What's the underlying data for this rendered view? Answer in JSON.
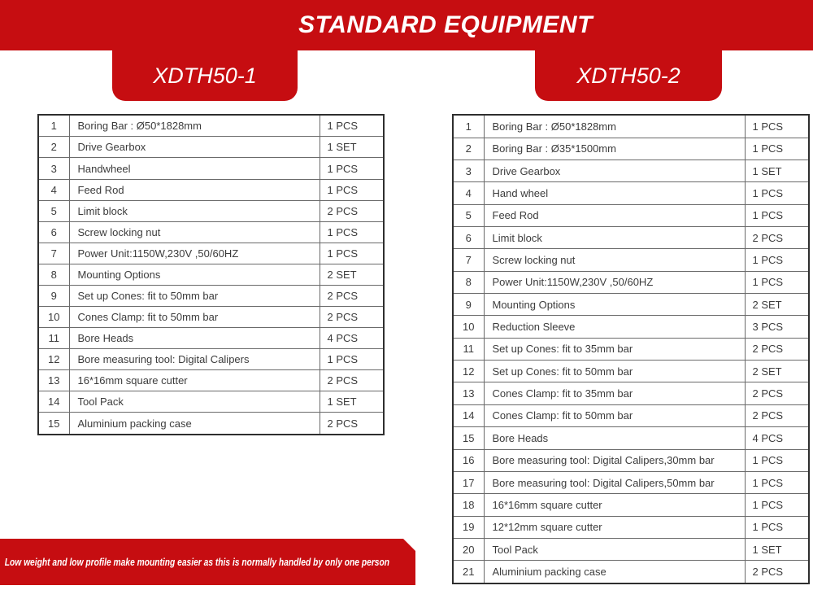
{
  "title": "STANDARD EQUIPMENT",
  "colors": {
    "brand_red": "#C60D11",
    "table_text": "#3C3C3C"
  },
  "tabs": [
    {
      "label": "XDTH50-1"
    },
    {
      "label": "XDTH50-2"
    }
  ],
  "tables": [
    {
      "model": "XDTH50-1",
      "rows": [
        [
          "1",
          "Boring Bar : Ø50*1828mm",
          "1 PCS"
        ],
        [
          "2",
          "Drive Gearbox",
          "1 SET"
        ],
        [
          "3",
          "Handwheel",
          "1 PCS"
        ],
        [
          "4",
          "Feed Rod",
          "1 PCS"
        ],
        [
          "5",
          "Limit block",
          "2 PCS"
        ],
        [
          "6",
          "Screw locking nut",
          "1 PCS"
        ],
        [
          "7",
          "Power Unit:1150W,230V ,50/60HZ",
          "1 PCS"
        ],
        [
          "8",
          "Mounting Options",
          "2 SET"
        ],
        [
          "9",
          "Set up Cones: fit to 50mm bar",
          "2 PCS"
        ],
        [
          "10",
          "Cones Clamp: fit to 50mm bar",
          "2 PCS"
        ],
        [
          "11",
          "Bore Heads",
          "4 PCS"
        ],
        [
          "12",
          "Bore measuring tool: Digital Calipers",
          "1 PCS"
        ],
        [
          "13",
          "16*16mm square cutter",
          "2 PCS"
        ],
        [
          "14",
          "Tool Pack",
          "1 SET"
        ],
        [
          "15",
          "Aluminium packing case",
          "2 PCS"
        ]
      ]
    },
    {
      "model": "XDTH50-2",
      "rows": [
        [
          "1",
          "Boring Bar : Ø50*1828mm",
          "1 PCS"
        ],
        [
          "2",
          "Boring Bar : Ø35*1500mm",
          "1 PCS"
        ],
        [
          "3",
          "Drive Gearbox",
          "1 SET"
        ],
        [
          "4",
          "Hand wheel",
          "1 PCS"
        ],
        [
          "5",
          "Feed Rod",
          "1 PCS"
        ],
        [
          "6",
          "Limit block",
          "2 PCS"
        ],
        [
          "7",
          "Screw locking nut",
          "1 PCS"
        ],
        [
          "8",
          "Power Unit:1150W,230V ,50/60HZ",
          "1 PCS"
        ],
        [
          "9",
          "Mounting Options",
          "2 SET"
        ],
        [
          "10",
          "Reduction Sleeve",
          "3 PCS"
        ],
        [
          "11",
          "Set up Cones: fit to 35mm bar",
          "2 PCS"
        ],
        [
          "12",
          "Set up Cones: fit to 50mm bar",
          "2 SET"
        ],
        [
          "13",
          "Cones Clamp: fit to 35mm bar",
          "2 PCS"
        ],
        [
          "14",
          "Cones Clamp: fit to 50mm bar",
          "2 PCS"
        ],
        [
          "15",
          "Bore Heads",
          "4 PCS"
        ],
        [
          "16",
          "Bore measuring tool: Digital Calipers,30mm bar",
          "1 PCS"
        ],
        [
          "17",
          "Bore measuring tool: Digital Calipers,50mm bar",
          "1 PCS"
        ],
        [
          "18",
          "16*16mm square cutter",
          "1 PCS"
        ],
        [
          "19",
          "12*12mm square cutter",
          "1 PCS"
        ],
        [
          "20",
          "Tool Pack",
          "1 SET"
        ],
        [
          "21",
          "Aluminium packing case",
          "2 PCS"
        ]
      ]
    }
  ],
  "footer_note": "Low weight and low profile make mounting easier as this is normally handled by only one person"
}
